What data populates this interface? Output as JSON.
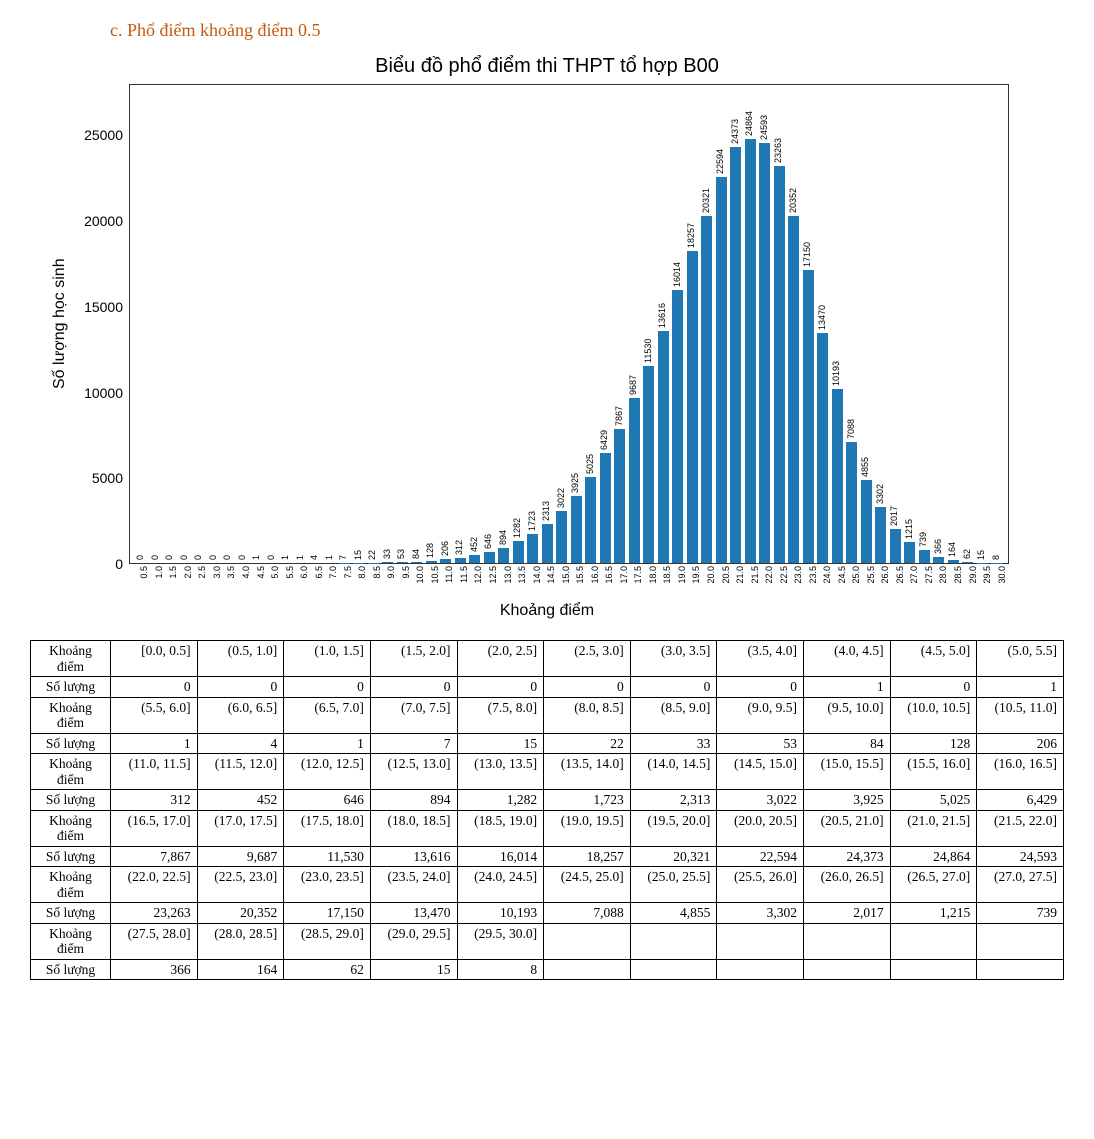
{
  "heading": "c.   Phổ điểm khoảng điểm 0.5",
  "heading_color": "#c55a11",
  "chart": {
    "type": "bar",
    "title": "Biểu đồ phổ điểm thi THPT tổ hợp B00",
    "title_fontsize": 20,
    "xlabel": "Khoảng điểm",
    "ylabel": "Số lượng học sinh",
    "label_fontsize": 16,
    "bar_color": "#1f77b4",
    "background_color": "#ffffff",
    "border_color": "#333333",
    "value_label_fontsize": 9,
    "tick_fontsize": 9,
    "bar_width_ratio": 0.78,
    "yticks": [
      0,
      5000,
      10000,
      15000,
      20000,
      25000
    ],
    "ylim": [
      0,
      28000
    ],
    "categories": [
      "0.5",
      "1.0",
      "1.5",
      "2.0",
      "2.5",
      "3.0",
      "3.5",
      "4.0",
      "4.5",
      "5.0",
      "5.5",
      "6.0",
      "6.5",
      "7.0",
      "7.5",
      "8.0",
      "8.5",
      "9.0",
      "9.5",
      "10.0",
      "10.5",
      "11.0",
      "11.5",
      "12.0",
      "12.5",
      "13.0",
      "13.5",
      "14.0",
      "14.5",
      "15.0",
      "15.5",
      "16.0",
      "16.5",
      "17.0",
      "17.5",
      "18.0",
      "18.5",
      "19.0",
      "19.5",
      "20.0",
      "20.5",
      "21.0",
      "21.5",
      "22.0",
      "22.5",
      "23.0",
      "23.5",
      "24.0",
      "24.5",
      "25.0",
      "25.5",
      "26.0",
      "26.5",
      "27.0",
      "27.5",
      "28.0",
      "28.5",
      "29.0",
      "29.5",
      "30.0"
    ],
    "values": [
      0,
      0,
      0,
      0,
      0,
      0,
      0,
      0,
      1,
      0,
      1,
      1,
      4,
      1,
      7,
      15,
      22,
      33,
      53,
      84,
      128,
      206,
      312,
      452,
      646,
      894,
      1282,
      1723,
      2313,
      3022,
      3925,
      5025,
      6429,
      7867,
      9687,
      11530,
      13616,
      16014,
      18257,
      20321,
      22594,
      24373,
      24864,
      24593,
      23263,
      20352,
      17150,
      13470,
      10193,
      7088,
      4855,
      3302,
      2017,
      1215,
      739,
      366,
      164,
      62,
      15,
      8
    ]
  },
  "table": {
    "row_header_range": "Khoảng điểm",
    "row_header_count": "Số lượng",
    "cols_per_group": 11,
    "groups": [
      {
        "ranges": [
          "[0.0, 0.5]",
          "(0.5, 1.0]",
          "(1.0, 1.5]",
          "(1.5, 2.0]",
          "(2.0, 2.5]",
          "(2.5, 3.0]",
          "(3.0, 3.5]",
          "(3.5, 4.0]",
          "(4.0, 4.5]",
          "(4.5, 5.0]",
          "(5.0, 5.5]"
        ],
        "counts": [
          "0",
          "0",
          "0",
          "0",
          "0",
          "0",
          "0",
          "0",
          "1",
          "0",
          "1"
        ]
      },
      {
        "ranges": [
          "(5.5, 6.0]",
          "(6.0, 6.5]",
          "(6.5, 7.0]",
          "(7.0, 7.5]",
          "(7.5, 8.0]",
          "(8.0, 8.5]",
          "(8.5, 9.0]",
          "(9.0, 9.5]",
          "(9.5, 10.0]",
          "(10.0, 10.5]",
          "(10.5, 11.0]"
        ],
        "counts": [
          "1",
          "4",
          "1",
          "7",
          "15",
          "22",
          "33",
          "53",
          "84",
          "128",
          "206"
        ]
      },
      {
        "ranges": [
          "(11.0, 11.5]",
          "(11.5, 12.0]",
          "(12.0, 12.5]",
          "(12.5, 13.0]",
          "(13.0, 13.5]",
          "(13.5, 14.0]",
          "(14.0, 14.5]",
          "(14.5, 15.0]",
          "(15.0, 15.5]",
          "(15.5, 16.0]",
          "(16.0, 16.5]"
        ],
        "counts": [
          "312",
          "452",
          "646",
          "894",
          "1,282",
          "1,723",
          "2,313",
          "3,022",
          "3,925",
          "5,025",
          "6,429"
        ]
      },
      {
        "ranges": [
          "(16.5, 17.0]",
          "(17.0, 17.5]",
          "(17.5, 18.0]",
          "(18.0, 18.5]",
          "(18.5, 19.0]",
          "(19.0, 19.5]",
          "(19.5, 20.0]",
          "(20.0, 20.5]",
          "(20.5, 21.0]",
          "(21.0, 21.5]",
          "(21.5, 22.0]"
        ],
        "counts": [
          "7,867",
          "9,687",
          "11,530",
          "13,616",
          "16,014",
          "18,257",
          "20,321",
          "22,594",
          "24,373",
          "24,864",
          "24,593"
        ]
      },
      {
        "ranges": [
          "(22.0, 22.5]",
          "(22.5, 23.0]",
          "(23.0, 23.5]",
          "(23.5, 24.0]",
          "(24.0, 24.5]",
          "(24.5, 25.0]",
          "(25.0, 25.5]",
          "(25.5, 26.0]",
          "(26.0, 26.5]",
          "(26.5, 27.0]",
          "(27.0, 27.5]"
        ],
        "counts": [
          "23,263",
          "20,352",
          "17,150",
          "13,470",
          "10,193",
          "7,088",
          "4,855",
          "3,302",
          "2,017",
          "1,215",
          "739"
        ]
      },
      {
        "ranges": [
          "(27.5, 28.0]",
          "(28.0, 28.5]",
          "(28.5, 29.0]",
          "(29.0, 29.5]",
          "(29.5, 30.0]",
          "",
          "",
          "",
          "",
          "",
          ""
        ],
        "counts": [
          "366",
          "164",
          "62",
          "15",
          "8",
          "",
          "",
          "",
          "",
          "",
          ""
        ]
      }
    ]
  }
}
